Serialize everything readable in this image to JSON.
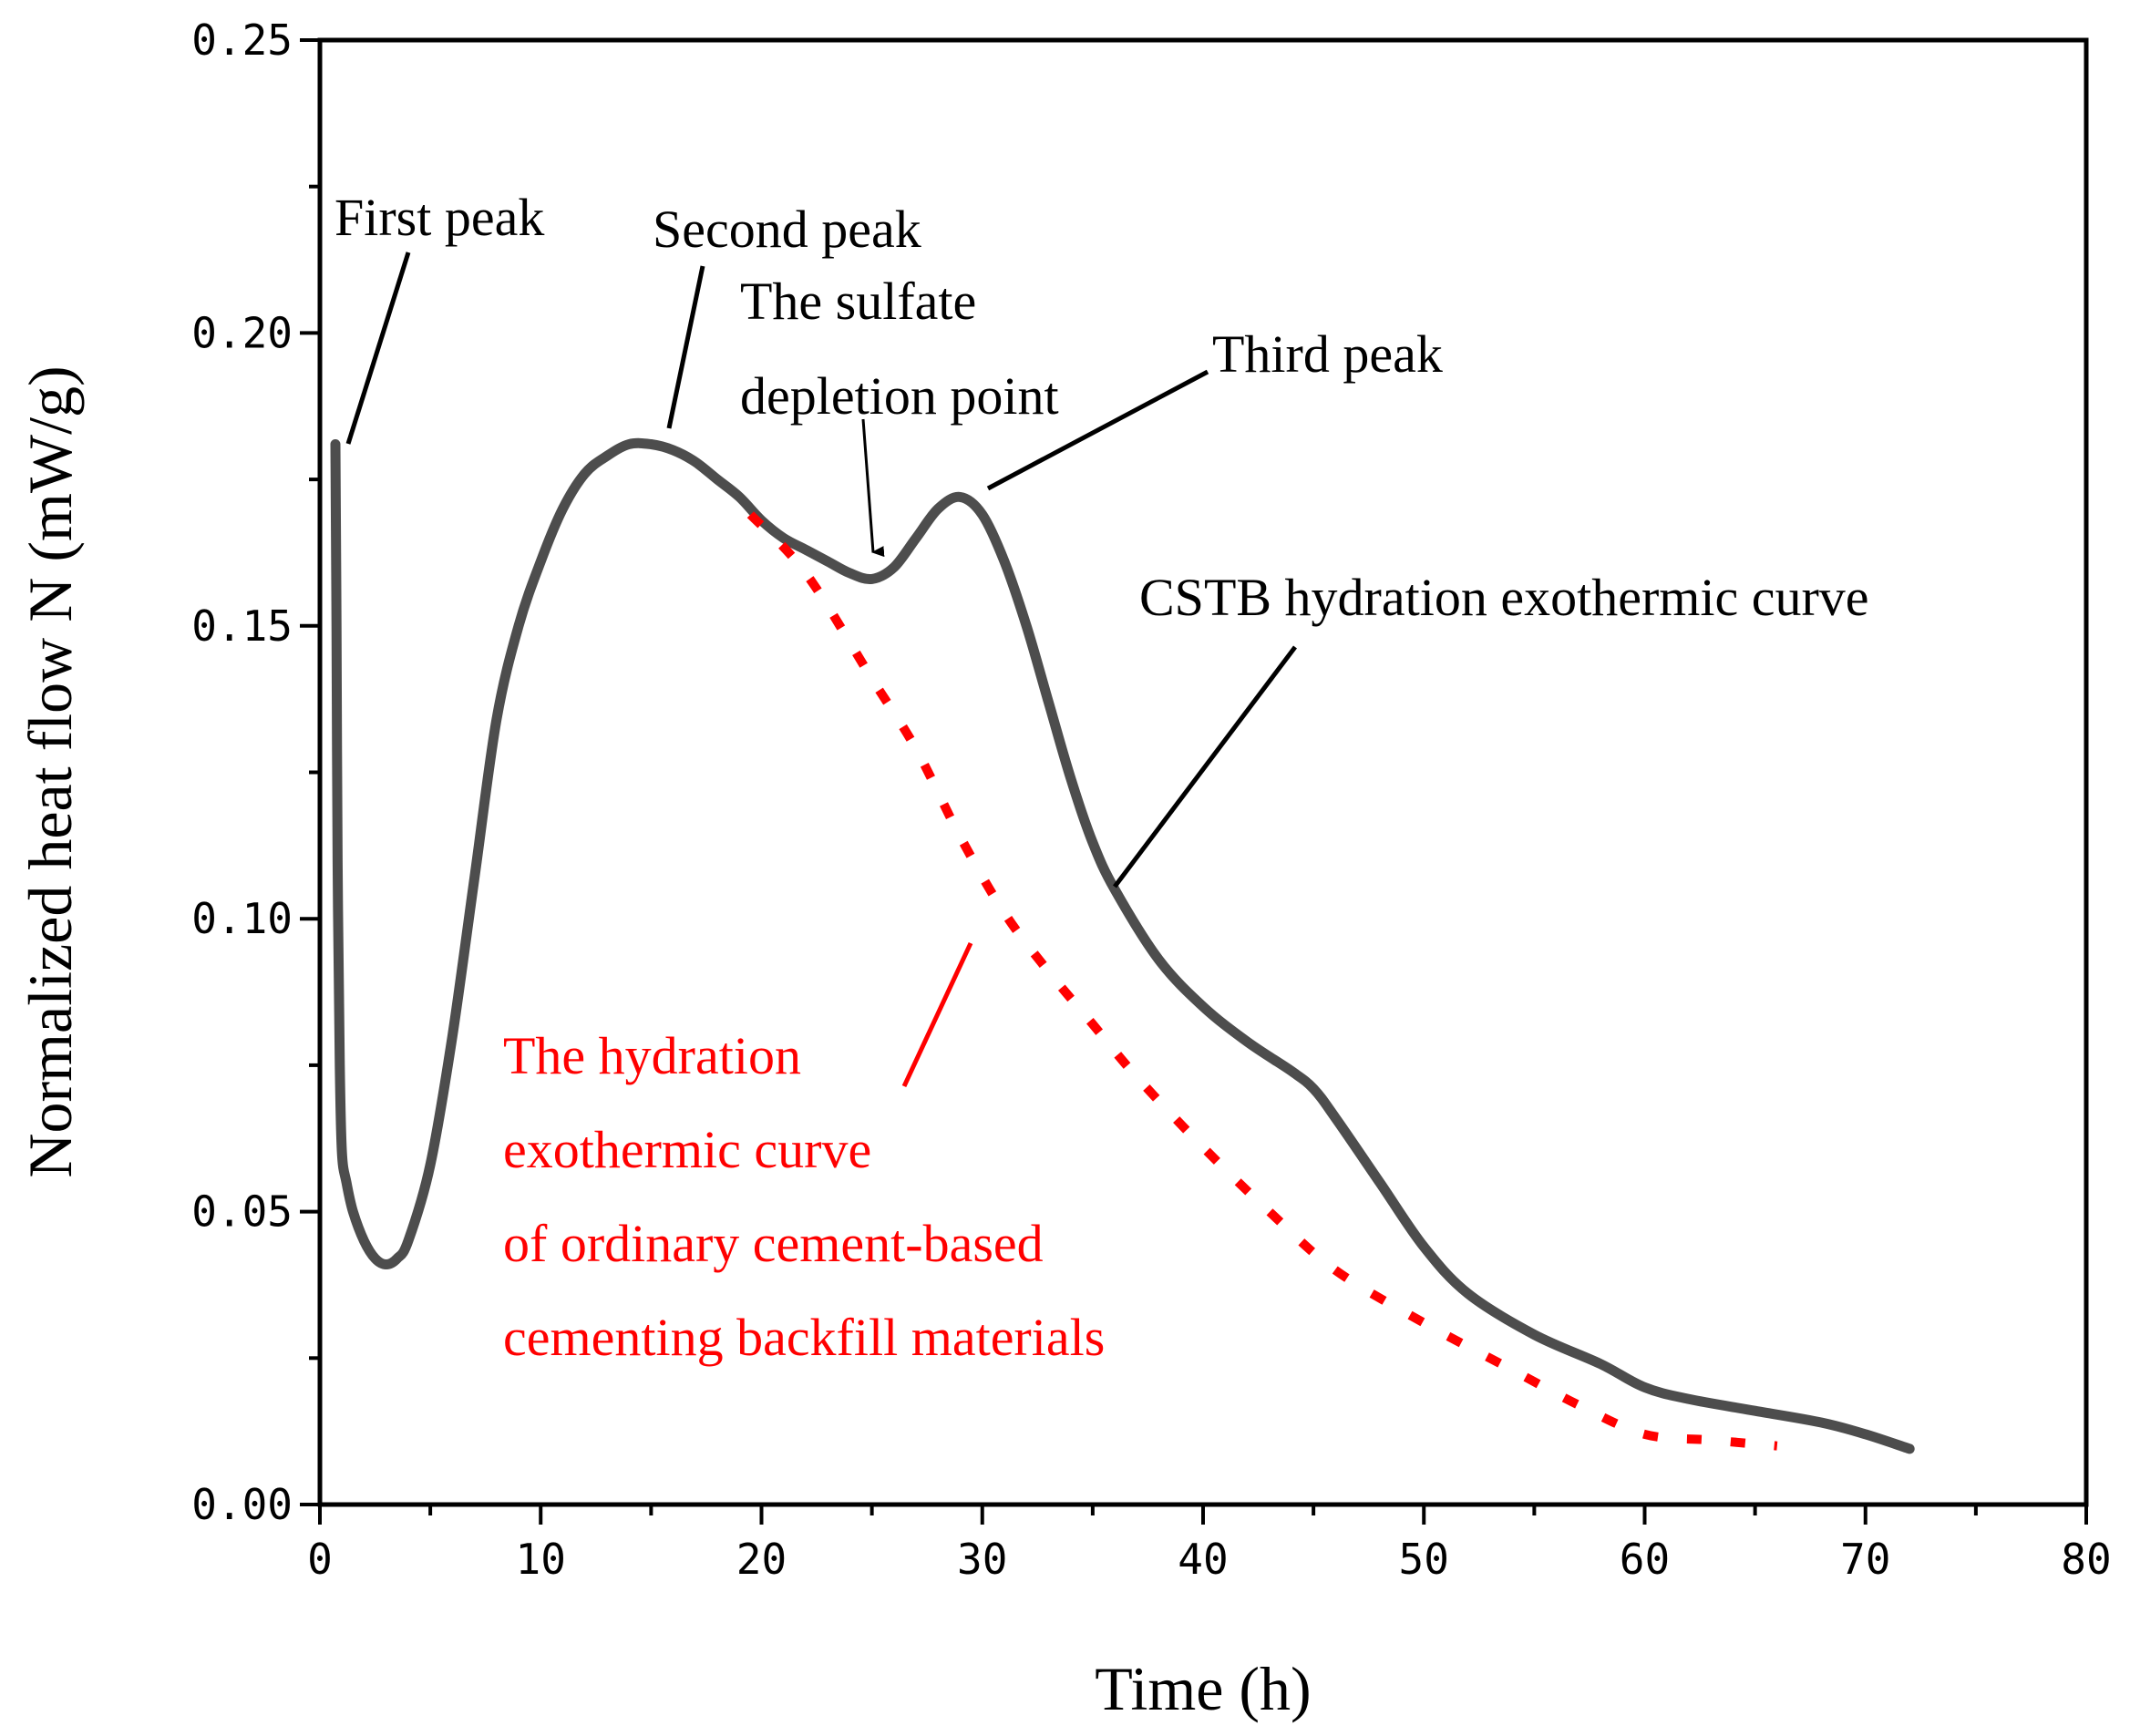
{
  "chart_data": {
    "type": "line",
    "xlabel": "Time (h)",
    "ylabel": "Normalized heat flow N (mW/g)",
    "xlim": [
      0,
      80
    ],
    "ylim": [
      0,
      0.25
    ],
    "xticks": [
      0,
      10,
      20,
      30,
      40,
      50,
      60,
      70,
      80
    ],
    "xtick_labels": [
      "0",
      "10",
      "20",
      "30",
      "40",
      "50",
      "60",
      "70",
      "80"
    ],
    "yticks": [
      0,
      0.05,
      0.1,
      0.15,
      0.2,
      0.25
    ],
    "ytick_labels": [
      "0.00",
      "0.05",
      "0.10",
      "0.15",
      "0.20",
      "0.25"
    ],
    "grid": false,
    "series": [
      {
        "name": "CSTB hydration exothermic curve",
        "color": "#4d4d4d",
        "style": "solid",
        "x": [
          0.7,
          0.75,
          0.8,
          0.9,
          1.0,
          1.2,
          1.5,
          2.0,
          2.5,
          3.0,
          3.5,
          4.0,
          5.0,
          6.0,
          7.0,
          8.0,
          9.0,
          10.0,
          11.0,
          12.0,
          13.0,
          14.0,
          15.0,
          16.0,
          17.0,
          18.0,
          19.0,
          20.0,
          21.0,
          22.0,
          23.0,
          24.0,
          25.0,
          26.0,
          27.0,
          28.0,
          29.0,
          30.0,
          31.0,
          32.0,
          33.0,
          34.0,
          35.0,
          36.0,
          38.0,
          40.0,
          42.0,
          44.0,
          45.0,
          46.0,
          48.0,
          50.0,
          52.0,
          55.0,
          58.0,
          60.0,
          62.0,
          65.0,
          68.0,
          70.0,
          72.0
        ],
        "y": [
          0.181,
          0.15,
          0.11,
          0.075,
          0.06,
          0.055,
          0.05,
          0.045,
          0.042,
          0.041,
          0.042,
          0.045,
          0.058,
          0.08,
          0.107,
          0.134,
          0.15,
          0.161,
          0.17,
          0.176,
          0.179,
          0.181,
          0.181,
          0.18,
          0.178,
          0.175,
          0.172,
          0.168,
          0.165,
          0.163,
          0.161,
          0.159,
          0.158,
          0.16,
          0.165,
          0.17,
          0.172,
          0.169,
          0.161,
          0.15,
          0.137,
          0.124,
          0.113,
          0.105,
          0.093,
          0.085,
          0.079,
          0.074,
          0.071,
          0.066,
          0.055,
          0.044,
          0.036,
          0.029,
          0.024,
          0.02,
          0.018,
          0.016,
          0.014,
          0.012,
          0.0095
        ]
      },
      {
        "name": "The hydration exothermic curve of ordinary cement-based cementing backfill materials",
        "color": "#ff0000",
        "style": "dotted",
        "x": [
          19.5,
          22,
          25,
          27,
          29,
          31,
          33,
          35,
          37,
          40,
          43,
          46,
          50,
          54,
          57,
          60,
          63,
          66
        ],
        "y": [
          0.169,
          0.159,
          0.141,
          0.129,
          0.114,
          0.101,
          0.091,
          0.082,
          0.073,
          0.061,
          0.05,
          0.04,
          0.031,
          0.023,
          0.017,
          0.012,
          0.011,
          0.01
        ]
      }
    ],
    "annotations": {
      "first_peak": "First peak",
      "second_peak": "Second peak",
      "sulfate_line1": "The sulfate",
      "sulfate_line2": "depletion point",
      "third_peak": "Third peak",
      "cstb_curve": "CSTB hydration exothermic curve",
      "red_line1": "The hydration",
      "red_line2": "exothermic curve",
      "red_line3": "of ordinary cement-based",
      "red_line4": "cementing backfill materials"
    }
  }
}
